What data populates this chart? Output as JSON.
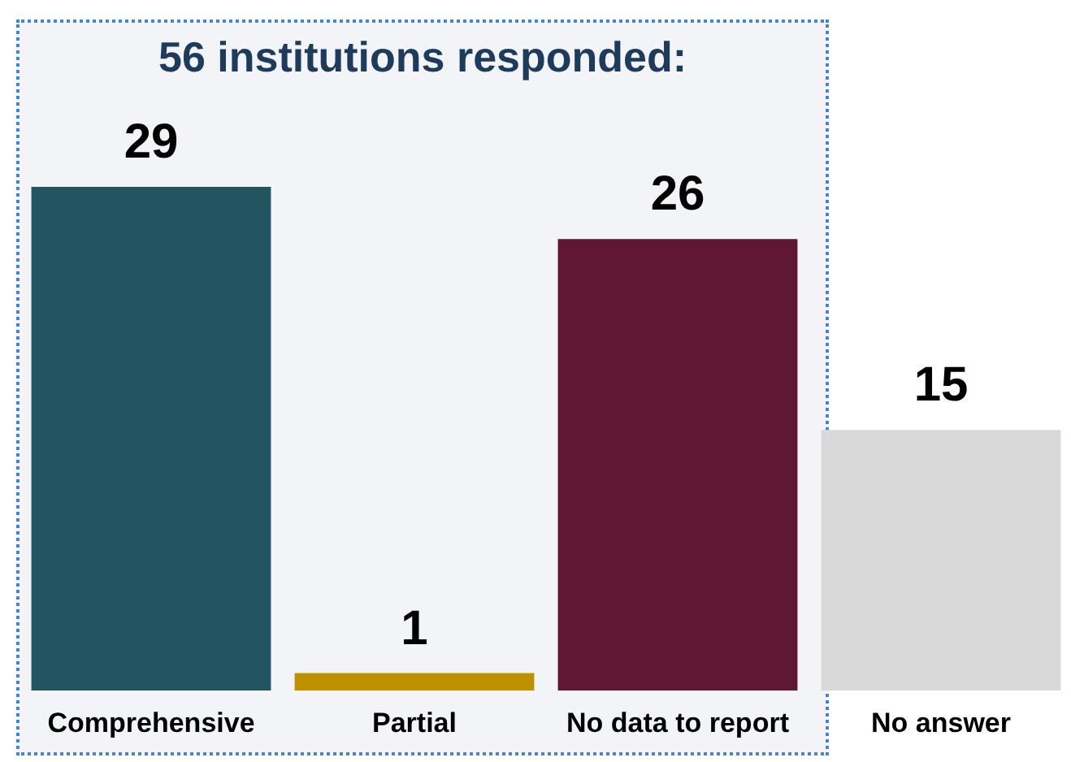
{
  "chart_data": {
    "type": "bar",
    "title": "56 institutions responded:",
    "categories": [
      "Comprehensive",
      "Partial",
      "No data to report",
      "No answer"
    ],
    "values": [
      29,
      1,
      26,
      15
    ],
    "colors": [
      "#22555f",
      "#bf9000",
      "#601733",
      "#d9d9d9"
    ],
    "data_labels": true
  }
}
